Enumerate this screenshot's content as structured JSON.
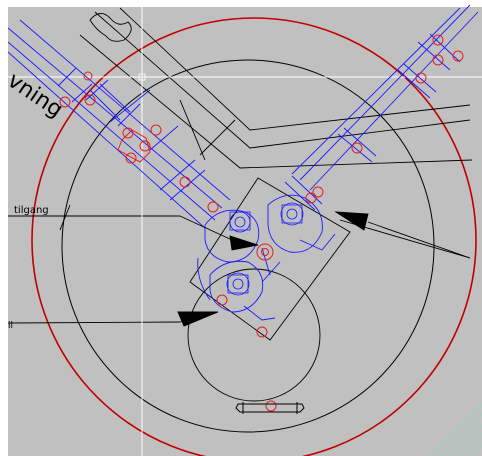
{
  "drawing": {
    "background_color": "#c0c0c0",
    "colors": {
      "outer_circle": "#c00000",
      "inner_lines": "#000000",
      "pipes": "#1a1aff",
      "markers": "#e02020",
      "crosshair": "#ffffff",
      "corner_hatch": "#9ad0c0"
    },
    "labels": {
      "ving_text": "vning",
      "tilgang_text": "tilgang",
      "left_edge_text": "il"
    }
  }
}
